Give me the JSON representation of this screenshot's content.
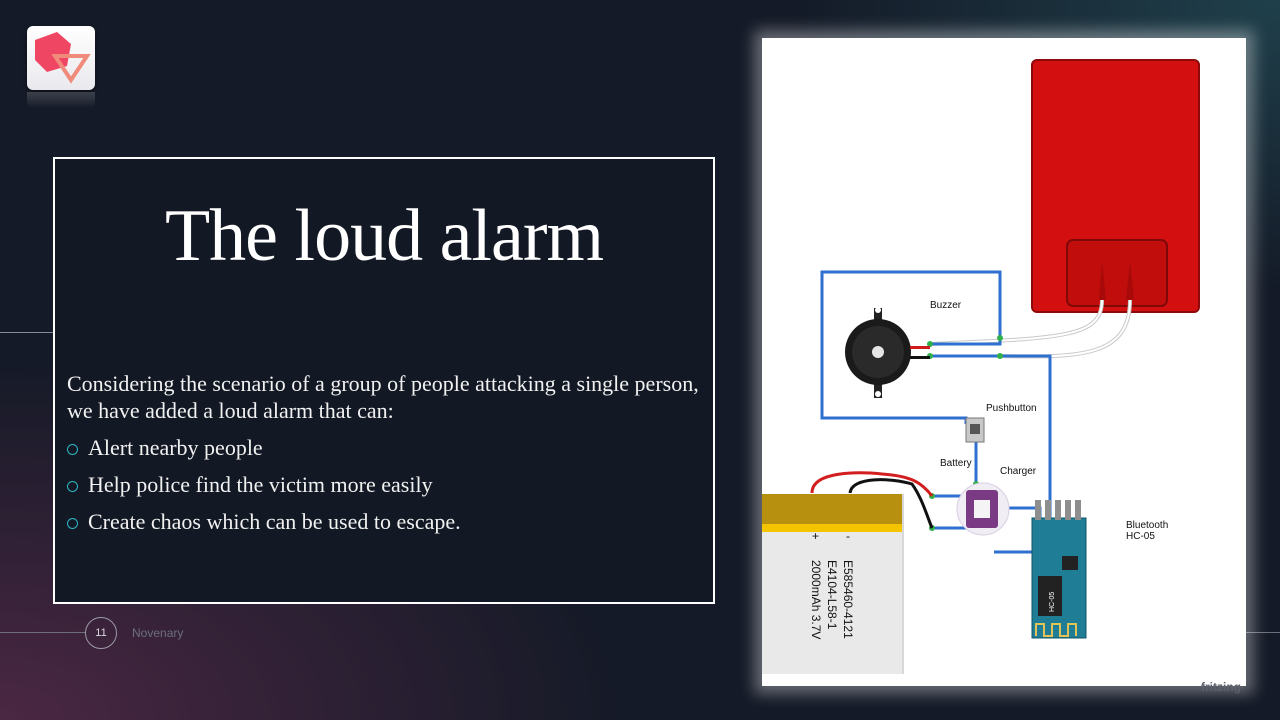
{
  "slide": {
    "title": "The loud alarm",
    "intro": "Considering the scenario of a group of people attacking a single person, we have added a loud alarm that can:",
    "bullets": [
      "Alert nearby people",
      "Help police find the victim more easily",
      "Create chaos which can be used to escape."
    ]
  },
  "footer": {
    "page_number": "11",
    "brand": "Novenary"
  },
  "diagram": {
    "labels": {
      "buzzer": "Buzzer",
      "pushbutton": "Pushbutton",
      "battery": "Battery",
      "charger": "Charger",
      "bluetooth_line1": "Bluetooth",
      "bluetooth_line2": "HC-05",
      "battery_minus": "-",
      "battery_plus": "+",
      "battery_line1": "E585460-4121",
      "battery_line2": "E4104-L58-1",
      "battery_line3": "2000mAh 3.7V",
      "module_text": "HC-05",
      "watermark": "fritzing"
    },
    "colors": {
      "wire": "#2f6fd0",
      "red_component": "#d40f0f",
      "battery_yellow": "#f3c500",
      "bluetooth_board": "#1f7e95"
    }
  },
  "theme": {
    "background": "#141a27",
    "accent": "#2db6c4",
    "logo": "#ec4c68"
  }
}
